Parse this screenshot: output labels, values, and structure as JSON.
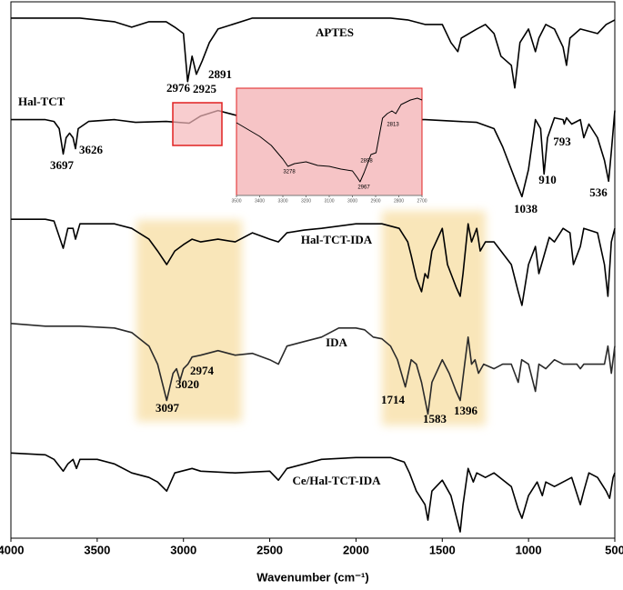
{
  "chart_data": [
    {
      "type": "line",
      "xlabel": "Wavenumber (cm⁻¹)",
      "xlim": [
        4000,
        500
      ],
      "xticks": [
        4000,
        3500,
        3000,
        2500,
        2000,
        1500,
        1000,
        500
      ],
      "ylim": [
        592,
        0
      ],
      "series": [
        {
          "name": "APTES",
          "color": "#000000",
          "x": [
            4000,
            3600,
            3400,
            3300,
            3200,
            3100,
            3050,
            3000,
            2976,
            2950,
            2925,
            2891,
            2850,
            2800,
            2600,
            2000,
            1800,
            1700,
            1600,
            1500,
            1450,
            1410,
            1390,
            1300,
            1250,
            1200,
            1160,
            1100,
            1080,
            1050,
            1000,
            960,
            940,
            900,
            850,
            800,
            780,
            760,
            700,
            600,
            550,
            500
          ],
          "values": [
            18,
            18,
            22,
            28,
            22,
            22,
            28,
            35,
            88,
            60,
            80,
            65,
            45,
            30,
            18,
            18,
            18,
            20,
            25,
            25,
            45,
            55,
            40,
            30,
            25,
            35,
            60,
            70,
            95,
            45,
            30,
            55,
            40,
            25,
            30,
            50,
            70,
            40,
            30,
            35,
            25,
            20
          ],
          "peaks": [
            2976,
            2925,
            2891
          ]
        },
        {
          "name": "Hal-TCT",
          "color": "#000000",
          "x": [
            4000,
            3800,
            3750,
            3720,
            3697,
            3680,
            3660,
            3640,
            3626,
            3610,
            3550,
            3400,
            3278,
            3100,
            2967,
            2900,
            2800,
            2600,
            2000,
            1700,
            1600,
            1300,
            1200,
            1150,
            1100,
            1070,
            1038,
            1000,
            960,
            930,
            910,
            890,
            850,
            800,
            793,
            780,
            750,
            700,
            680,
            650,
            600,
            560,
            536,
            520,
            500
          ],
          "values": [
            130,
            130,
            132,
            140,
            168,
            150,
            145,
            150,
            162,
            140,
            132,
            130,
            133,
            132,
            134,
            126,
            120,
            130,
            130,
            130,
            130,
            133,
            140,
            160,
            185,
            200,
            215,
            185,
            130,
            140,
            190,
            150,
            128,
            130,
            135,
            128,
            135,
            130,
            150,
            135,
            150,
            175,
            198,
            165,
            120
          ],
          "peaks": [
            3697,
            3626,
            1038,
            910,
            793,
            536
          ]
        },
        {
          "name": "Hal-TCT-IDA",
          "color": "#000000",
          "x": [
            4000,
            3800,
            3750,
            3697,
            3670,
            3640,
            3626,
            3600,
            3400,
            3300,
            3200,
            3150,
            3097,
            3050,
            3000,
            2950,
            2900,
            2800,
            2700,
            2600,
            2500,
            2450,
            2400,
            2300,
            2200,
            2000,
            1850,
            1750,
            1700,
            1680,
            1650,
            1620,
            1600,
            1583,
            1560,
            1500,
            1470,
            1420,
            1396,
            1380,
            1350,
            1330,
            1300,
            1280,
            1250,
            1200,
            1100,
            1060,
            1038,
            1000,
            960,
            940,
            910,
            880,
            850,
            800,
            760,
            740,
            700,
            680,
            600,
            560,
            540,
            520,
            500
          ],
          "values": [
            240,
            240,
            242,
            272,
            250,
            250,
            262,
            245,
            245,
            250,
            262,
            275,
            290,
            275,
            268,
            262,
            265,
            262,
            265,
            255,
            262,
            265,
            255,
            252,
            250,
            245,
            245,
            250,
            265,
            280,
            305,
            320,
            300,
            305,
            275,
            250,
            290,
            315,
            325,
            300,
            245,
            265,
            250,
            275,
            265,
            265,
            290,
            320,
            335,
            290,
            270,
            300,
            280,
            260,
            265,
            250,
            255,
            290,
            270,
            250,
            255,
            290,
            325,
            265,
            250
          ]
        },
        {
          "name": "IDA",
          "color": "#2a2a2a",
          "x": [
            4000,
            3800,
            3600,
            3400,
            3300,
            3200,
            3150,
            3097,
            3060,
            3040,
            3020,
            3000,
            2974,
            2950,
            2900,
            2800,
            2700,
            2600,
            2500,
            2450,
            2400,
            2300,
            2200,
            2100,
            2000,
            1950,
            1900,
            1850,
            1800,
            1760,
            1714,
            1680,
            1650,
            1620,
            1583,
            1560,
            1500,
            1460,
            1420,
            1396,
            1370,
            1350,
            1330,
            1310,
            1290,
            1260,
            1200,
            1150,
            1100,
            1060,
            1040,
            1000,
            960,
            940,
            900,
            850,
            800,
            720,
            700,
            680,
            600,
            560,
            540,
            520,
            500
          ],
          "values": [
            355,
            358,
            358,
            360,
            365,
            380,
            400,
            440,
            410,
            405,
            418,
            405,
            400,
            392,
            390,
            385,
            390,
            388,
            395,
            400,
            380,
            375,
            370,
            360,
            360,
            362,
            370,
            372,
            380,
            395,
            425,
            395,
            400,
            420,
            455,
            420,
            395,
            410,
            430,
            440,
            400,
            370,
            400,
            395,
            410,
            400,
            405,
            400,
            400,
            420,
            395,
            400,
            430,
            400,
            405,
            395,
            400,
            400,
            405,
            400,
            400,
            400,
            380,
            410,
            380
          ],
          "peaks": [
            3097,
            3020,
            2974,
            1714,
            1583,
            1396
          ]
        },
        {
          "name": "Ce/Hal-TCT-IDA",
          "color": "#000000",
          "x": [
            4000,
            3800,
            3750,
            3697,
            3670,
            3640,
            3620,
            3600,
            3500,
            3400,
            3300,
            3200,
            3150,
            3097,
            3050,
            2950,
            2900,
            2700,
            2500,
            2450,
            2400,
            2200,
            2000,
            1800,
            1720,
            1690,
            1650,
            1600,
            1583,
            1560,
            1500,
            1450,
            1396,
            1380,
            1350,
            1320,
            1300,
            1250,
            1200,
            1100,
            1060,
            1038,
            1000,
            950,
            920,
            900,
            850,
            800,
            750,
            700,
            680,
            650,
            600,
            550,
            530,
            510,
            500
          ],
          "values": [
            498,
            500,
            505,
            518,
            510,
            505,
            515,
            505,
            505,
            510,
            520,
            525,
            530,
            540,
            520,
            515,
            518,
            520,
            518,
            528,
            515,
            505,
            503,
            503,
            508,
            520,
            540,
            555,
            572,
            540,
            528,
            545,
            585,
            555,
            515,
            530,
            520,
            525,
            520,
            535,
            560,
            570,
            545,
            530,
            545,
            530,
            535,
            530,
            525,
            555,
            540,
            520,
            525,
            540,
            548,
            525,
            520
          ]
        }
      ]
    },
    {
      "type": "line",
      "xlim": [
        3500,
        2700
      ],
      "xticks": [
        3500,
        3400,
        3300,
        3200,
        3100,
        3000,
        2900,
        2800,
        2700
      ],
      "ylim": [
        215,
        97
      ],
      "x": [
        3500,
        3400,
        3350,
        3300,
        3278,
        3250,
        3200,
        3150,
        3100,
        3050,
        3000,
        2980,
        2967,
        2950,
        2920,
        2898,
        2870,
        2850,
        2830,
        2813,
        2790,
        2750,
        2720,
        2700
      ],
      "values": [
        135,
        150,
        160,
        175,
        183,
        180,
        178,
        182,
        183,
        186,
        188,
        195,
        200,
        190,
        170,
        168,
        130,
        125,
        122,
        125,
        115,
        110,
        108,
        110
      ],
      "peaks": [
        3278,
        2967,
        2898,
        2813
      ]
    }
  ]
}
